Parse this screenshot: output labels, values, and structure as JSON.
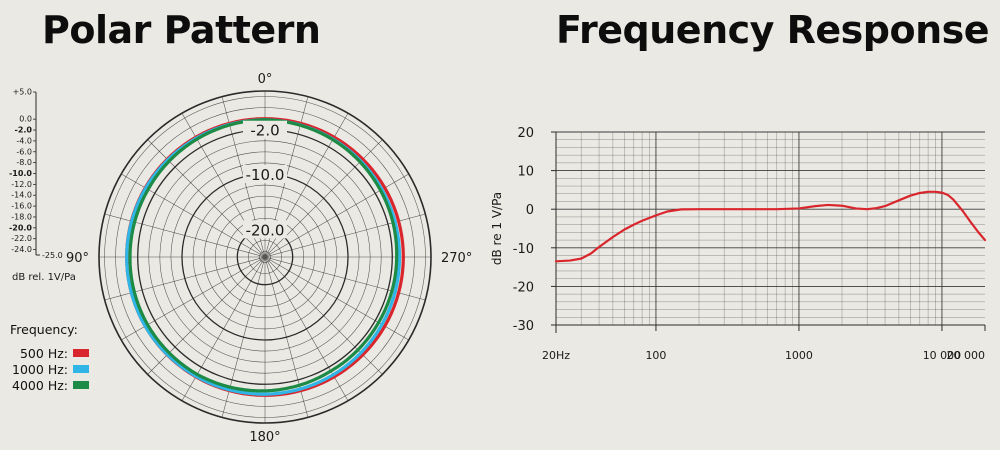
{
  "colors": {
    "background": "#ebe9e4",
    "red": "#d9262c",
    "blue": "#2fb6e6",
    "green": "#1d8a45",
    "grid": "#2a2a2a"
  },
  "chart_data": [
    {
      "type": "polar",
      "title": "Polar Pattern",
      "angle_labels": [
        "0°",
        "90°",
        "180°",
        "270°"
      ],
      "ring_labels": [
        "-2.0",
        "-10.0",
        "-20.0"
      ],
      "scale": {
        "unit_label": "dB rel. 1V/Pa",
        "ticks": [
          "+5.0",
          "0.0",
          "-2.0",
          "-4.0",
          "-6.0",
          "-8.0",
          "-10.0",
          "-12.0",
          "-14.0",
          "-16.0",
          "-18.0",
          "-20.0",
          "-22.0",
          "-24.0"
        ],
        "bold_ticks": [
          "-2.0",
          "-10.0",
          "-20.0"
        ],
        "min_label": "-25.0",
        "range_db": [
          -25,
          5
        ]
      },
      "legend": {
        "heading": "Frequency:",
        "items": [
          {
            "label": "500 Hz:",
            "color": "#d9262c"
          },
          {
            "label": "1000 Hz:",
            "color": "#2fb6e6"
          },
          {
            "label": "4000 Hz:",
            "color": "#1d8a45"
          }
        ]
      },
      "series": [
        {
          "name": "500 Hz",
          "color": "#d9262c",
          "points": [
            [
              0,
              0
            ],
            [
              30,
              0
            ],
            [
              60,
              0
            ],
            [
              90,
              0
            ],
            [
              120,
              0
            ],
            [
              150,
              0
            ],
            [
              180,
              0
            ],
            [
              210,
              0
            ],
            [
              240,
              0
            ],
            [
              270,
              0
            ],
            [
              300,
              0
            ],
            [
              330,
              0
            ]
          ]
        },
        {
          "name": "1000 Hz",
          "color": "#2fb6e6",
          "points": [
            [
              0,
              -0.2
            ],
            [
              30,
              -0.2
            ],
            [
              60,
              -0.1
            ],
            [
              90,
              0
            ],
            [
              120,
              0
            ],
            [
              150,
              -0.1
            ],
            [
              180,
              -0.2
            ],
            [
              210,
              -0.4
            ],
            [
              240,
              -0.6
            ],
            [
              270,
              -0.7
            ],
            [
              300,
              -0.6
            ],
            [
              330,
              -0.4
            ]
          ]
        },
        {
          "name": "4000 Hz",
          "color": "#1d8a45",
          "points": [
            [
              0,
              -0.2
            ],
            [
              30,
              -0.4
            ],
            [
              60,
              -0.6
            ],
            [
              90,
              -0.6
            ],
            [
              120,
              -0.5
            ],
            [
              150,
              -0.5
            ],
            [
              180,
              -0.8
            ],
            [
              210,
              -1.2
            ],
            [
              240,
              -1.3
            ],
            [
              270,
              -1.2
            ],
            [
              300,
              -0.9
            ],
            [
              330,
              -0.5
            ]
          ]
        }
      ]
    },
    {
      "type": "line",
      "title": "Frequency Response",
      "ylabel": "dB re 1 V/Pa",
      "xscale": "log",
      "xlim": [
        20,
        20000
      ],
      "ylim": [
        -30,
        20
      ],
      "yticks": [
        20,
        10,
        0,
        -10,
        -20,
        -30
      ],
      "xticks": [
        {
          "value": 20,
          "label": "20Hz"
        },
        {
          "value": 100,
          "label": "100"
        },
        {
          "value": 1000,
          "label": "1000"
        },
        {
          "value": 10000,
          "label": "10 000"
        },
        {
          "value": 20000,
          "label": "20 000"
        }
      ],
      "grid": true,
      "series": [
        {
          "color": "#d9262c",
          "x": [
            20,
            25,
            30,
            35,
            40,
            50,
            60,
            70,
            80,
            100,
            120,
            150,
            200,
            300,
            500,
            700,
            1000,
            1300,
            1600,
            2000,
            2500,
            3000,
            3500,
            4000,
            5000,
            6000,
            7000,
            8000,
            9000,
            10000,
            11000,
            12000,
            14000,
            16000,
            18000,
            20000
          ],
          "y": [
            -13.5,
            -13.3,
            -12.8,
            -11.5,
            -9.8,
            -7.2,
            -5.3,
            -4.0,
            -3.0,
            -1.6,
            -0.6,
            -0.05,
            0,
            0,
            0,
            0,
            0.2,
            0.8,
            1.1,
            0.9,
            0.2,
            0,
            0.3,
            0.8,
            2.3,
            3.5,
            4.2,
            4.5,
            4.5,
            4.3,
            3.7,
            2.5,
            -0.5,
            -3.5,
            -6,
            -8
          ]
        }
      ]
    }
  ]
}
